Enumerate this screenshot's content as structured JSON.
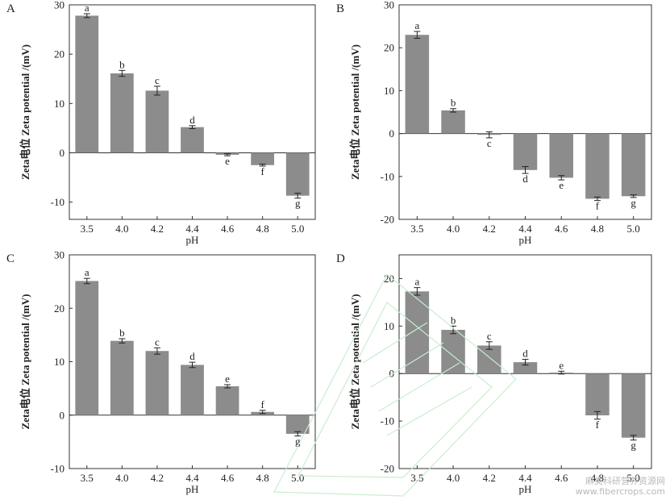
{
  "chart_data": [
    {
      "panel": "A",
      "type": "bar",
      "categories": [
        "3.5",
        "4.0",
        "4.2",
        "4.4",
        "4.6",
        "4.8",
        "5.0"
      ],
      "values": [
        27.8,
        16.1,
        12.6,
        5.2,
        -0.4,
        -2.5,
        -8.7
      ],
      "errors": [
        0.4,
        0.6,
        0.9,
        0.3,
        0.2,
        0.2,
        0.5
      ],
      "letters": [
        "a",
        "b",
        "c",
        "d",
        "e",
        "f",
        "g"
      ],
      "xlabel": "pH",
      "ylabel": "Zeta电位 Zeta potential /(mV)",
      "ylim": [
        -13.5,
        30
      ],
      "yticks": [
        -10,
        0,
        10,
        20,
        30
      ],
      "bar_color": "#8c8c8c"
    },
    {
      "panel": "B",
      "type": "bar",
      "categories": [
        "3.5",
        "4.0",
        "4.2",
        "4.4",
        "4.6",
        "4.8",
        "5.0"
      ],
      "values": [
        23.0,
        5.4,
        -0.3,
        -8.5,
        -10.3,
        -15.2,
        -14.6
      ],
      "errors": [
        0.8,
        0.4,
        0.7,
        0.8,
        0.5,
        0.4,
        0.3
      ],
      "letters": [
        "a",
        "b",
        "c",
        "d",
        "e",
        "f",
        "g"
      ],
      "xlabel": "pH",
      "ylabel": "Zeta电位 Zeta potential /(mV)",
      "ylim": [
        -20,
        30
      ],
      "yticks": [
        -20,
        -10,
        0,
        10,
        20,
        30
      ],
      "bar_color": "#8c8c8c"
    },
    {
      "panel": "C",
      "type": "bar",
      "categories": [
        "3.5",
        "4.0",
        "4.2",
        "4.4",
        "4.6",
        "4.8",
        "5.0"
      ],
      "values": [
        25.1,
        13.9,
        12.0,
        9.4,
        5.4,
        0.6,
        -3.5
      ],
      "errors": [
        0.5,
        0.4,
        0.6,
        0.5,
        0.3,
        0.3,
        0.4
      ],
      "letters": [
        "a",
        "b",
        "c",
        "d",
        "e",
        "f",
        "g"
      ],
      "xlabel": "pH",
      "ylabel": "Zeta电位 Zeta potential /(mV)",
      "ylim": [
        -10,
        30
      ],
      "yticks": [
        -10,
        0,
        10,
        20,
        30
      ],
      "bar_color": "#8c8c8c"
    },
    {
      "panel": "D",
      "type": "bar",
      "categories": [
        "3.5",
        "4.0",
        "4.2",
        "4.4",
        "4.6",
        "4.8",
        "5.0"
      ],
      "values": [
        17.3,
        9.2,
        5.9,
        2.4,
        0.2,
        -8.8,
        -13.5
      ],
      "errors": [
        0.8,
        0.8,
        0.8,
        0.6,
        0.3,
        0.8,
        0.5
      ],
      "letters": [
        "a",
        "b",
        "c",
        "d",
        "e",
        "f",
        "g"
      ],
      "xlabel": "pH",
      "ylabel": "Zeta电位 Zeta potential /(mV)",
      "ylim": [
        -20,
        25
      ],
      "yticks": [
        -20,
        -10,
        0,
        10,
        20
      ],
      "bar_color": "#8c8c8c"
    }
  ],
  "watermark": {
    "line1": "麻类科研营养资源网",
    "line2": "www.fibercrops.com"
  }
}
